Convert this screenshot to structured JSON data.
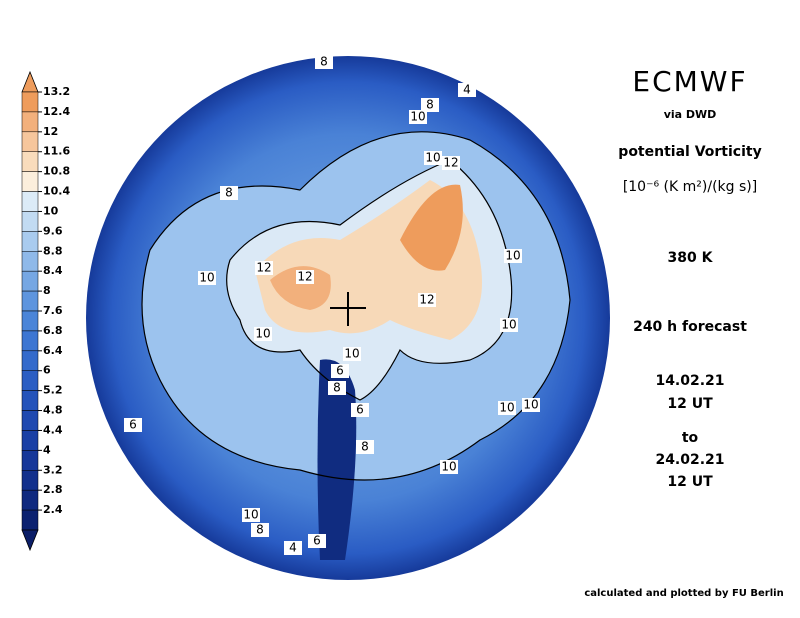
{
  "header": {
    "title": "ECMWF",
    "source": "via DWD",
    "field": "potential Vorticity",
    "unit": "[10⁻⁶ (K m²)/(kg s)]",
    "level": "380 K",
    "forecast": "240 h forecast",
    "start_date": "14.02.21",
    "start_time": "12 UT",
    "to": "to",
    "end_date": "24.02.21",
    "end_time": "12 UT"
  },
  "footer": "calculated and plotted by FU Berlin",
  "colorbar": {
    "labels": [
      13.2,
      12.4,
      12,
      11.6,
      10.8,
      10.4,
      10,
      9.6,
      8.8,
      8.4,
      8,
      7.6,
      6.8,
      6.4,
      6,
      5.2,
      4.8,
      4.4,
      4,
      3.2,
      2.8,
      2.4
    ],
    "colors": [
      "#ee9c5c",
      "#f2b07c",
      "#f6c69c",
      "#f9dcbc",
      "#fbeedc",
      "#dcebf7",
      "#c2dbf2",
      "#a9cbee",
      "#8fb9e9",
      "#76a7e3",
      "#5e95de",
      "#4b85d8",
      "#3d76d2",
      "#336acb",
      "#2b5ec3",
      "#2453ba",
      "#1f49b0",
      "#1a40a5",
      "#163799",
      "#12308c",
      "#0f297f",
      "#0b2170"
    ],
    "top_color": "#ee9c5c",
    "bottom_color": "#0b1e68"
  },
  "contour_labels": [
    8,
    4,
    8,
    10,
    10,
    12,
    8,
    10,
    12,
    12,
    10,
    12,
    10,
    10,
    10,
    6,
    8,
    6,
    8,
    10,
    10,
    6,
    10,
    10,
    8,
    4,
    6
  ]
}
